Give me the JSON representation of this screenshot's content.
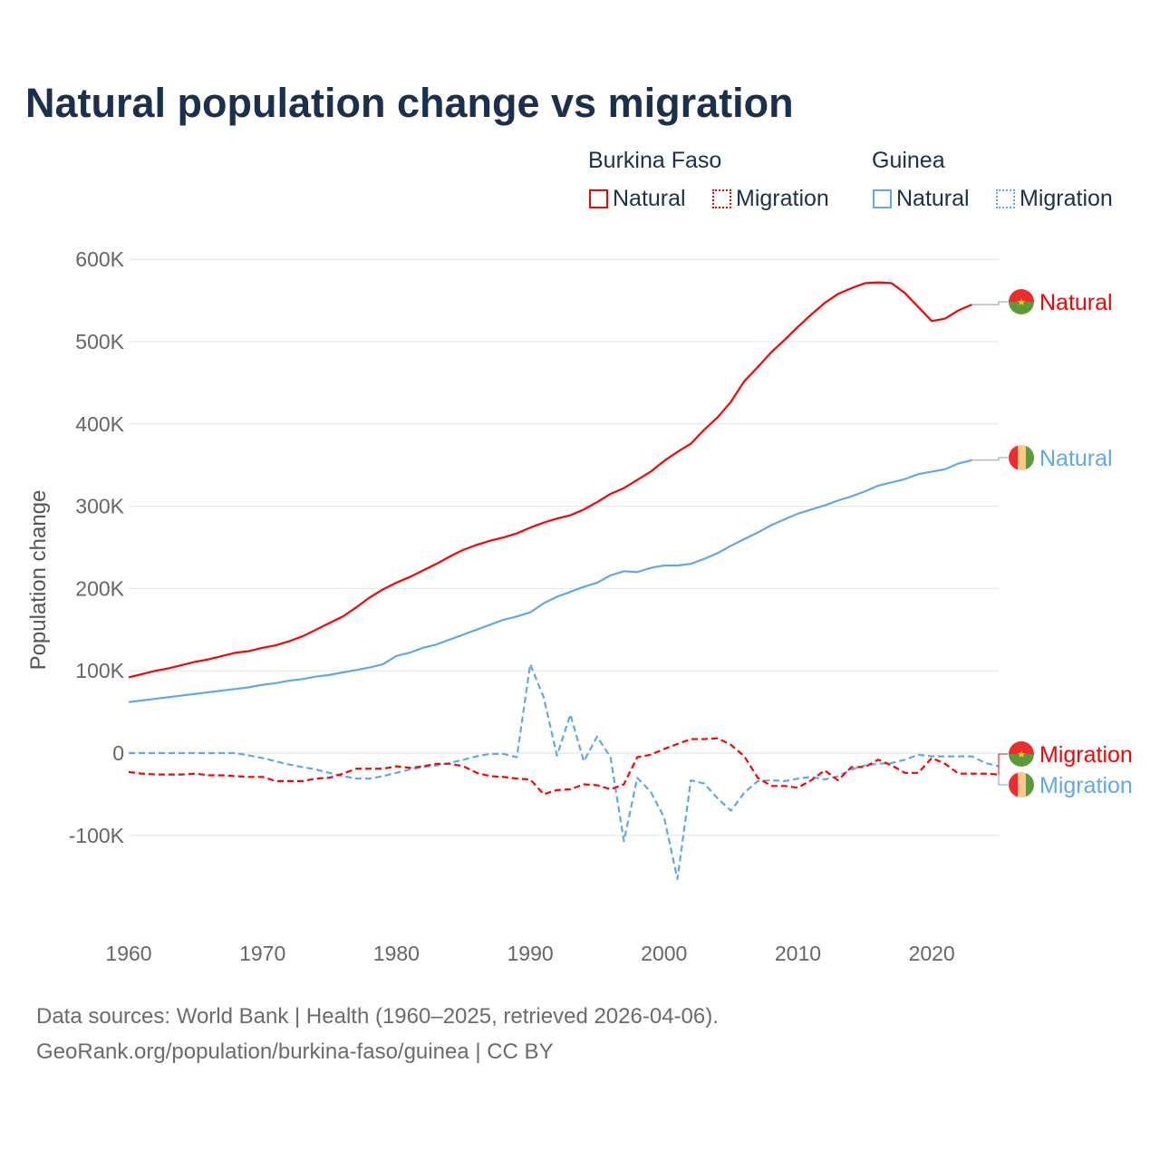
{
  "chart_data": {
    "type": "line",
    "title": "Natural population change vs migration",
    "xlabel": "",
    "ylabel": "Population change",
    "xlim": [
      1960,
      2025
    ],
    "ylim": [
      -100000,
      600000
    ],
    "x_ticks": [
      "1960",
      "1970",
      "1980",
      "1990",
      "2000",
      "2010",
      "2020"
    ],
    "y_ticks": [
      {
        "value": 600000,
        "label": "600K"
      },
      {
        "value": 500000,
        "label": "500K"
      },
      {
        "value": 400000,
        "label": "400K"
      },
      {
        "value": 300000,
        "label": "300K"
      },
      {
        "value": 200000,
        "label": "200K"
      },
      {
        "value": 100000,
        "label": "100K"
      },
      {
        "value": 0,
        "label": "0"
      },
      {
        "value": -100000,
        "label": "-100K"
      }
    ],
    "grid": true,
    "legend_placement": "top-right",
    "legend": {
      "groups": [
        {
          "name": "Burkina Faso",
          "items": [
            "Natural",
            "Migration"
          ]
        },
        {
          "name": "Guinea",
          "items": [
            "Natural",
            "Migration"
          ]
        }
      ]
    },
    "series": [
      {
        "name": "Burkina Faso Natural",
        "country": "Burkina Faso",
        "kind": "Natural",
        "end_label": "Natural",
        "color": "#ff0000",
        "dash": "solid",
        "start_year": 1960,
        "values_k": [
          92,
          96,
          100,
          103,
          107,
          111,
          114,
          118,
          122,
          124,
          128,
          131,
          136,
          142,
          150,
          158,
          166,
          177,
          189,
          199,
          207,
          214,
          222,
          230,
          239,
          247,
          253,
          258,
          262,
          267,
          274,
          280,
          285,
          289,
          296,
          305,
          315,
          322,
          332,
          342,
          355,
          366,
          376,
          393,
          408,
          427,
          452,
          469,
          487,
          502,
          518,
          533,
          547,
          558,
          565,
          571,
          572,
          571,
          559,
          542,
          525,
          528,
          538,
          545
        ]
      },
      {
        "name": "Guinea Natural",
        "country": "Guinea",
        "kind": "Natural",
        "end_label": "Natural",
        "color": "#5ea8ef",
        "dash": "solid",
        "start_year": 1960,
        "values_k": [
          62,
          64,
          66,
          68,
          70,
          72,
          74,
          76,
          78,
          80,
          83,
          85,
          88,
          90,
          93,
          95,
          98,
          101,
          104,
          108,
          118,
          122,
          128,
          132,
          138,
          144,
          150,
          156,
          162,
          166,
          171,
          182,
          190,
          196,
          202,
          207,
          216,
          221,
          220,
          225,
          228,
          228,
          230,
          236,
          243,
          252,
          260,
          268,
          277,
          284,
          291,
          296,
          301,
          307,
          312,
          318,
          325,
          329,
          333,
          339,
          342,
          345,
          352,
          356
        ]
      },
      {
        "name": "Guinea Migration",
        "country": "Guinea",
        "kind": "Migration",
        "end_label": "Migration",
        "color": "#5ea8ef",
        "dash": "dashed",
        "start_year": 1960,
        "values_k": [
          0,
          0,
          0,
          0,
          0,
          0,
          0,
          0,
          0,
          -3,
          -6,
          -10,
          -14,
          -17,
          -20,
          -24,
          -28,
          -31,
          -31,
          -28,
          -24,
          -20,
          -17,
          -15,
          -12,
          -8,
          -4,
          -1,
          -1,
          -5,
          108,
          68,
          -3,
          47,
          -10,
          20,
          -5,
          -107,
          -30,
          -47,
          -78,
          -153,
          -33,
          -37,
          -55,
          -70,
          -48,
          -34,
          -33,
          -34,
          -31,
          -29,
          -32,
          -28,
          -20,
          -15,
          -13,
          -12,
          -8,
          -2,
          -4,
          -4,
          -4,
          -4,
          -12,
          -16
        ]
      },
      {
        "name": "Burkina Faso Migration",
        "country": "Burkina Faso",
        "kind": "Migration",
        "end_label": "Migration",
        "color": "#ff0000",
        "dash": "dashed",
        "start_year": 1960,
        "values_k": [
          -23,
          -25,
          -26,
          -26,
          -26,
          -25,
          -27,
          -27,
          -28,
          -29,
          -29,
          -34,
          -34,
          -34,
          -31,
          -30,
          -25,
          -19,
          -19,
          -19,
          -16,
          -18,
          -16,
          -13,
          -13,
          -16,
          -24,
          -28,
          -29,
          -31,
          -32,
          -50,
          -45,
          -44,
          -38,
          -39,
          -44,
          -38,
          -5,
          -2,
          5,
          11,
          17,
          17,
          18,
          10,
          -4,
          -30,
          -40,
          -40,
          -42,
          -33,
          -21,
          -33,
          -17,
          -17,
          -8,
          -15,
          -24,
          -24,
          -6,
          -13,
          -25,
          -25,
          -25,
          -26
        ]
      }
    ]
  },
  "footer": {
    "line1": "Data sources: World Bank | Health (1960–2025, retrieved 2026-04-06).",
    "line2": "GeoRank.org/population/burkina-faso/guinea | CC BY"
  }
}
